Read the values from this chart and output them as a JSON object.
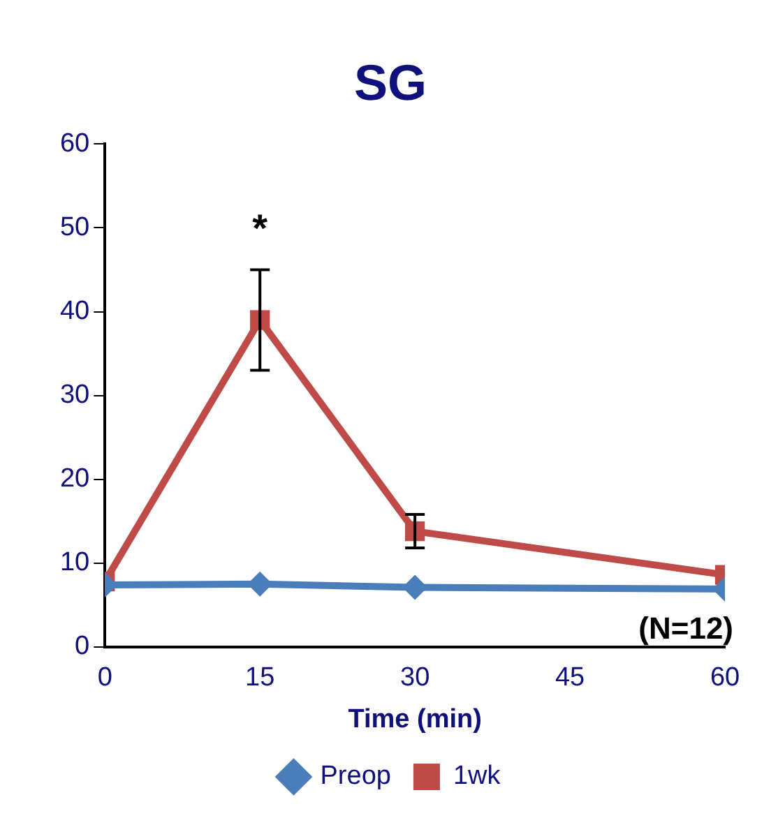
{
  "chart_data": {
    "type": "line",
    "title": "SG",
    "xlabel": "Time (min)",
    "x": [
      0,
      15,
      30,
      60
    ],
    "xlim": [
      0,
      60
    ],
    "xticks": [
      0,
      15,
      30,
      45,
      60
    ],
    "ylim": [
      0,
      60
    ],
    "yticks": [
      0,
      10,
      20,
      30,
      40,
      50,
      60
    ],
    "grid": false,
    "legend": "bottom",
    "series": [
      {
        "name": "Preop",
        "color": "#4a7ebb",
        "marker": "diamond",
        "values": [
          7.4,
          7.5,
          7.1,
          6.9
        ]
      },
      {
        "name": "1wk",
        "color": "#be4b48",
        "marker": "square",
        "values": [
          7.8,
          39,
          13.8,
          8.6
        ],
        "errors": [
          null,
          6,
          2,
          null
        ]
      }
    ],
    "annotations": [
      {
        "text": "*",
        "x": 15,
        "y": 45
      },
      "(N=12)"
    ]
  }
}
